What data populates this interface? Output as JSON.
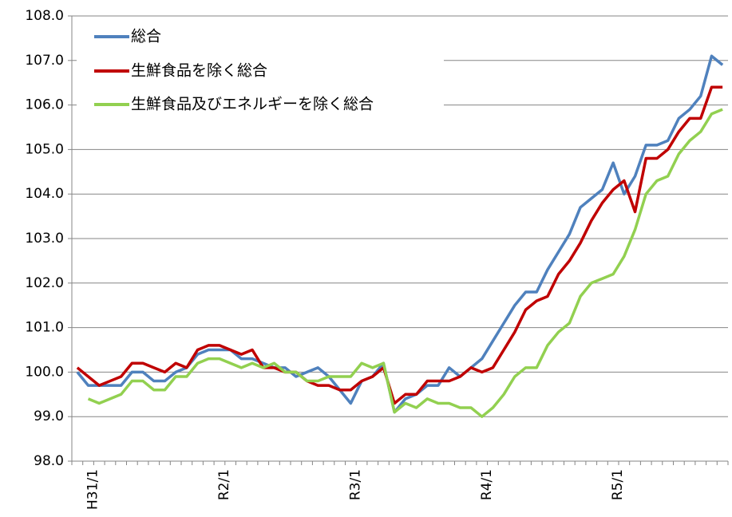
{
  "chart_data": {
    "type": "line",
    "categories": [
      null,
      "H31/1",
      null,
      null,
      null,
      null,
      null,
      null,
      null,
      null,
      null,
      null,
      null,
      "R2/1",
      null,
      null,
      null,
      null,
      null,
      null,
      null,
      null,
      null,
      null,
      null,
      "R3/1",
      null,
      null,
      null,
      null,
      null,
      null,
      null,
      null,
      null,
      null,
      null,
      "R4/1",
      null,
      null,
      null,
      null,
      null,
      null,
      null,
      null,
      null,
      null,
      null,
      "R5/1",
      null,
      null,
      null,
      null,
      null,
      null,
      null,
      null,
      null,
      null
    ],
    "series": [
      {
        "name": "総合",
        "color": "#4f81bd",
        "values": [
          100.0,
          99.7,
          99.7,
          99.7,
          99.7,
          100.0,
          100.0,
          99.8,
          99.8,
          100.0,
          100.1,
          100.4,
          100.5,
          100.5,
          100.5,
          100.3,
          100.3,
          100.2,
          100.1,
          100.1,
          99.9,
          100.0,
          100.1,
          99.9,
          99.6,
          99.3,
          99.8,
          99.9,
          100.2,
          99.1,
          99.4,
          99.5,
          99.7,
          99.7,
          100.1,
          99.9,
          100.1,
          100.3,
          100.7,
          101.1,
          101.5,
          101.8,
          101.8,
          102.3,
          102.7,
          103.1,
          103.7,
          103.9,
          104.1,
          104.7,
          104.0,
          104.4,
          105.1,
          105.1,
          105.2,
          105.7,
          105.9,
          106.2,
          107.1,
          106.9
        ]
      },
      {
        "name": "生鮮食品を除く総合",
        "color": "#c00000",
        "values": [
          100.1,
          99.9,
          99.7,
          99.8,
          99.9,
          100.2,
          100.2,
          100.1,
          100.0,
          100.2,
          100.1,
          100.5,
          100.6,
          100.6,
          100.5,
          100.4,
          100.5,
          100.1,
          100.1,
          100.0,
          100.0,
          99.8,
          99.7,
          99.7,
          99.6,
          99.6,
          99.8,
          99.9,
          100.1,
          99.3,
          99.5,
          99.5,
          99.8,
          99.8,
          99.8,
          99.9,
          100.1,
          100.0,
          100.1,
          100.5,
          100.9,
          101.4,
          101.6,
          101.7,
          102.2,
          102.5,
          102.9,
          103.4,
          103.8,
          104.1,
          104.3,
          103.6,
          104.8,
          104.8,
          105.0,
          105.4,
          105.7,
          105.7,
          106.4,
          106.4
        ]
      },
      {
        "name": "生鮮食品及びエネルギーを除く総合",
        "color": "#92d050",
        "values": [
          null,
          99.4,
          99.3,
          99.4,
          99.5,
          99.8,
          99.8,
          99.6,
          99.6,
          99.9,
          99.9,
          100.2,
          100.3,
          100.3,
          100.2,
          100.1,
          100.2,
          100.1,
          100.2,
          100.0,
          100.0,
          99.8,
          99.8,
          99.9,
          99.9,
          99.9,
          100.2,
          100.1,
          100.2,
          99.1,
          99.3,
          99.2,
          99.4,
          99.3,
          99.3,
          99.2,
          99.2,
          99.0,
          99.2,
          99.5,
          99.9,
          100.1,
          100.1,
          100.6,
          100.9,
          101.1,
          101.7,
          102.0,
          102.1,
          102.2,
          102.6,
          103.2,
          104.0,
          104.3,
          104.4,
          104.9,
          105.2,
          105.4,
          105.8,
          105.9
        ]
      }
    ],
    "ylim": [
      98,
      108
    ],
    "yticks": [
      {
        "value": 98,
        "label": "98.0"
      },
      {
        "value": 99,
        "label": "99.0"
      },
      {
        "value": 100,
        "label": "100.0"
      },
      {
        "value": 101,
        "label": "101.0"
      },
      {
        "value": 102,
        "label": "102.0"
      },
      {
        "value": 103,
        "label": "103.0"
      },
      {
        "value": 104,
        "label": "104.0"
      },
      {
        "value": 105,
        "label": "105.0"
      },
      {
        "value": 106,
        "label": "106.0"
      },
      {
        "value": 107,
        "label": "107.0"
      },
      {
        "value": 108,
        "label": "108.0"
      }
    ],
    "grid": true,
    "legend": "top-left"
  }
}
